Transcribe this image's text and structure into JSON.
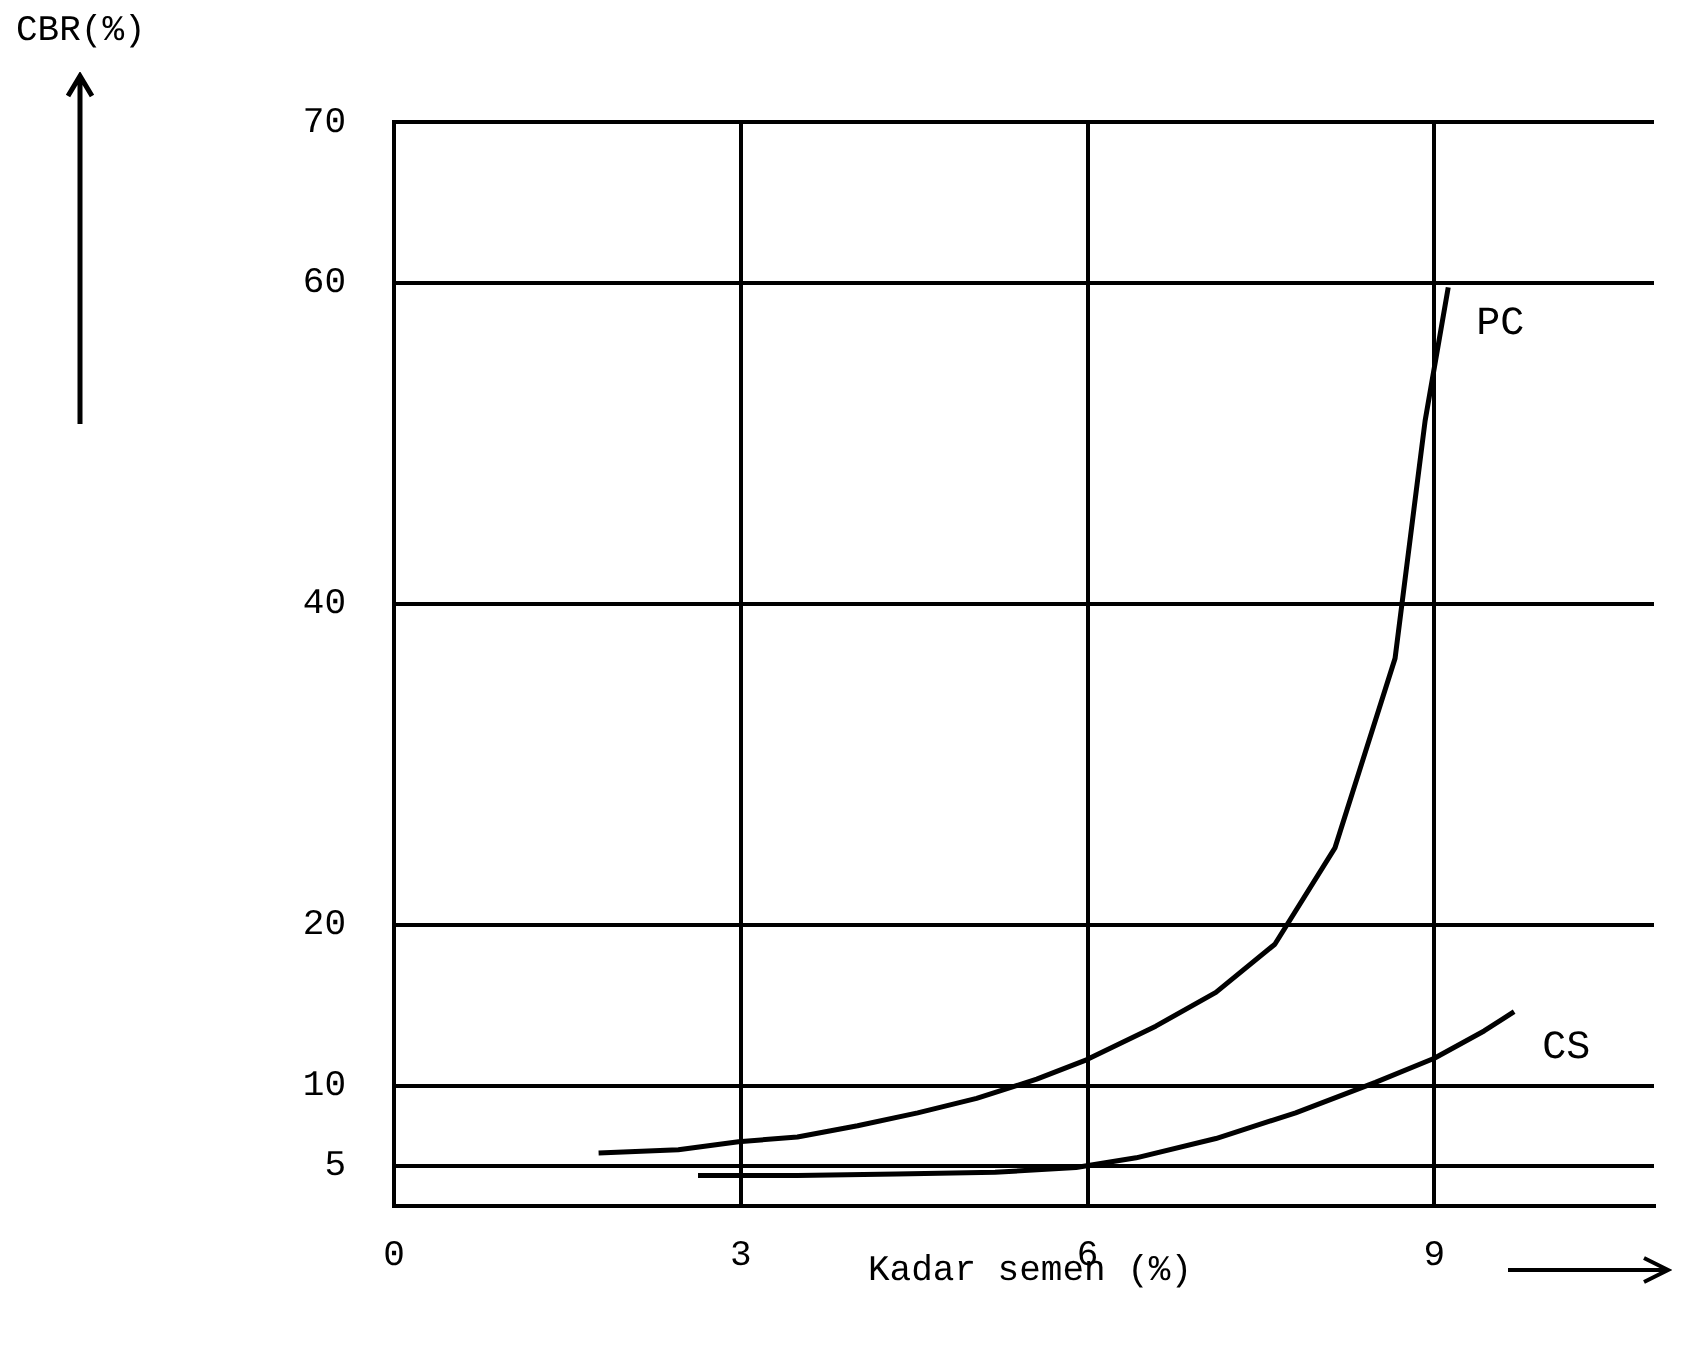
{
  "chart_data": {
    "type": "line",
    "xlabel": "Kadar semen (%)",
    "ylabel": "CBR(%)",
    "xlim": [
      0,
      10.9
    ],
    "xticks": [
      0,
      3,
      6,
      9
    ],
    "ylim": [
      2.5,
      70
    ],
    "yticks": [
      5,
      10,
      20,
      40,
      60,
      70
    ],
    "grid": true,
    "legend": false,
    "marker": "none",
    "line_style": "solid",
    "series": [
      {
        "name": "PC",
        "color": "#000000",
        "x": [
          1.77,
          2.46,
          2.98,
          3.49,
          4.01,
          4.53,
          5.04,
          5.56,
          5.99,
          6.59,
          7.11,
          7.62,
          8.14,
          8.66,
          8.92,
          9.12
        ],
        "values": [
          5.8,
          6,
          6.5,
          6.8,
          7.5,
          8.3,
          9.2,
          10.4,
          11.6,
          13.7,
          15.8,
          18.8,
          24.8,
          36.6,
          51.4,
          59.7
        ]
      },
      {
        "name": "CS",
        "color": "#000000",
        "x": [
          2.63,
          3.49,
          4.35,
          5.2,
          5.9,
          6.42,
          7.11,
          7.8,
          8.49,
          9.0,
          9.43,
          9.69
        ],
        "values": [
          4.4,
          4.4,
          4.5,
          4.6,
          4.9,
          5.5,
          6.7,
          8.3,
          10.2,
          11.7,
          13.4,
          14.6
        ]
      }
    ]
  }
}
